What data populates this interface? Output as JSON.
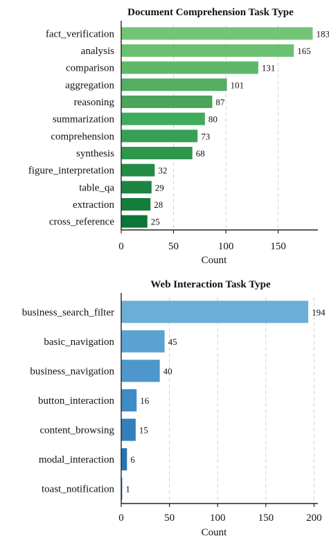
{
  "chart_data": [
    {
      "type": "bar",
      "orientation": "horizontal",
      "title": "Document Comprehension Task Type",
      "xlabel": "Count",
      "ylabel": "",
      "categories": [
        "fact_verification",
        "analysis",
        "comparison",
        "aggregation",
        "reasoning",
        "summarization",
        "comprehension",
        "synthesis",
        "figure_interpretation",
        "table_qa",
        "extraction",
        "cross_reference"
      ],
      "values": [
        183,
        165,
        131,
        101,
        87,
        80,
        73,
        68,
        32,
        29,
        28,
        25
      ],
      "value_labels": [
        "183",
        "165",
        "131",
        "101",
        "87",
        "80",
        "73",
        "68",
        "32",
        "29",
        "28",
        "25"
      ],
      "xlim": [
        0,
        188
      ],
      "xticks": [
        0,
        50,
        100,
        150
      ],
      "xtick_labels": [
        "0",
        "50",
        "100",
        "150"
      ],
      "grid": "x, dashed",
      "colors": [
        "#74c476",
        "#6bc171",
        "#5fb869",
        "#54ad62",
        "#4aa55a",
        "#41ab5d",
        "#37a055",
        "#2e974e",
        "#238b45",
        "#1b8441",
        "#137d3d",
        "#0c7638"
      ]
    },
    {
      "type": "bar",
      "orientation": "horizontal",
      "title": "Web Interaction Task Type",
      "xlabel": "Count",
      "ylabel": "",
      "categories": [
        "business_search_filter",
        "basic_navigation",
        "business_navigation",
        "button_interaction",
        "content_browsing",
        "modal_interaction",
        "toast_notification"
      ],
      "values": [
        194,
        45,
        40,
        16,
        15,
        6,
        1
      ],
      "value_labels": [
        "194",
        "45",
        "40",
        "16",
        "15",
        "6",
        "1"
      ],
      "xlim": [
        0,
        204
      ],
      "xticks": [
        0,
        50,
        100,
        150,
        200
      ],
      "xtick_labels": [
        "0",
        "50",
        "100",
        "150",
        "200"
      ],
      "grid": "x, dashed",
      "colors": [
        "#6baed6",
        "#5aa2d2",
        "#4d97cc",
        "#3f8bc4",
        "#337fbc",
        "#2874b3",
        "#1f68a9"
      ]
    }
  ]
}
